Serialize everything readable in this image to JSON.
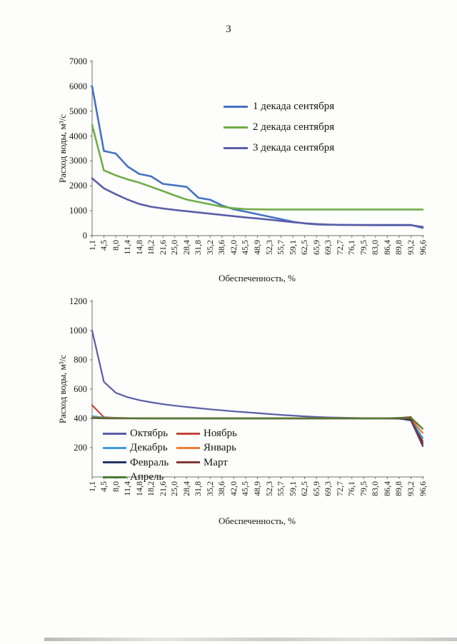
{
  "page": {
    "number": "3"
  },
  "chart_data": [
    {
      "type": "line",
      "title": "",
      "xlabel": "Обеспеченность, %",
      "ylabel": "Расход воды, м³/с",
      "ylim": [
        0,
        7000
      ],
      "y_ticks": [
        7000,
        6000,
        5000,
        4000,
        3000,
        2000,
        1000,
        0
      ],
      "grid": false,
      "legend_position": "inside-top-right",
      "categories": [
        "1,1",
        "4,5",
        "8,0",
        "11,4",
        "14,8",
        "18,2",
        "21,6",
        "25,0",
        "28,4",
        "31,8",
        "35,2",
        "38,6",
        "42,0",
        "45,5",
        "48,9",
        "52,3",
        "55,7",
        "59,1",
        "62,5",
        "65,9",
        "69,3",
        "72,7",
        "76,1",
        "79,5",
        "83,0",
        "86,4",
        "89,8",
        "93,2",
        "96,6"
      ],
      "series": [
        {
          "name": "1 декада сентября",
          "color": "#4472C4",
          "values": [
            6000,
            3400,
            3300,
            2780,
            2480,
            2380,
            2080,
            2020,
            1960,
            1520,
            1440,
            1210,
            1060,
            960,
            860,
            760,
            660,
            560,
            490,
            450,
            435,
            430,
            430,
            430,
            430,
            430,
            430,
            430,
            310
          ]
        },
        {
          "name": "2 декада сентября",
          "color": "#70AD47",
          "values": [
            4450,
            2620,
            2420,
            2260,
            2130,
            1960,
            1790,
            1610,
            1450,
            1350,
            1260,
            1160,
            1100,
            1065,
            1055,
            1050,
            1050,
            1050,
            1050,
            1050,
            1050,
            1050,
            1050,
            1050,
            1050,
            1050,
            1050,
            1050,
            1050
          ]
        },
        {
          "name": "3 декада сентября",
          "color": "#5B5EA6",
          "values": [
            2300,
            1900,
            1660,
            1450,
            1270,
            1160,
            1090,
            1030,
            980,
            930,
            880,
            830,
            780,
            730,
            690,
            640,
            590,
            540,
            495,
            465,
            445,
            432,
            425,
            422,
            420,
            420,
            420,
            420,
            350
          ]
        }
      ]
    },
    {
      "type": "line",
      "title": "",
      "xlabel": "Обеспеченность, %",
      "ylabel": "Расход воды, м³/с",
      "ylim": [
        0,
        1200
      ],
      "y_ticks": [
        1200,
        1000,
        800,
        600,
        400,
        200
      ],
      "grid": false,
      "legend_position": "inside-bottom-left",
      "categories": [
        "1,1",
        "4,5",
        "8,0",
        "11,4",
        "14,8",
        "18,2",
        "21,6",
        "25,0",
        "28,4",
        "31,8",
        "35,2",
        "38,6",
        "42,0",
        "45,5",
        "48,9",
        "52,3",
        "55,7",
        "59,1",
        "62,5",
        "65,9",
        "69,3",
        "72,7",
        "76,1",
        "79,5",
        "83,0",
        "86,4",
        "89,8",
        "93,2",
        "96,6"
      ],
      "series": [
        {
          "name": "Октябрь",
          "color": "#5B5EA6",
          "values": [
            1000,
            650,
            575,
            545,
            525,
            510,
            497,
            487,
            478,
            470,
            462,
            455,
            448,
            442,
            436,
            430,
            424,
            419,
            414,
            410,
            407,
            405,
            403,
            402,
            401,
            400,
            400,
            385,
            210
          ]
        },
        {
          "name": "Ноябрь",
          "color": "#C4443C",
          "values": [
            490,
            408,
            404,
            402,
            401,
            401,
            400,
            400,
            400,
            400,
            400,
            400,
            400,
            400,
            400,
            400,
            400,
            400,
            400,
            400,
            400,
            400,
            400,
            400,
            400,
            401,
            403,
            410,
            245
          ]
        },
        {
          "name": "Декабрь",
          "color": "#3E9BDB",
          "values": [
            415,
            406,
            403,
            402,
            402,
            401,
            401,
            401,
            401,
            401,
            401,
            401,
            401,
            401,
            401,
            401,
            401,
            401,
            401,
            401,
            401,
            401,
            401,
            401,
            400,
            399,
            402,
            395,
            265
          ]
        },
        {
          "name": "Январь",
          "color": "#ED7D31",
          "values": [
            408,
            404,
            403,
            402,
            402,
            402,
            402,
            402,
            402,
            402,
            402,
            402,
            402,
            402,
            402,
            402,
            402,
            402,
            402,
            402,
            402,
            402,
            402,
            402,
            402,
            402,
            400,
            400,
            300
          ]
        },
        {
          "name": "Февраль",
          "color": "#1F3864",
          "values": [
            404,
            402,
            401,
            401,
            400,
            400,
            400,
            400,
            400,
            400,
            400,
            400,
            400,
            400,
            400,
            400,
            400,
            400,
            400,
            400,
            400,
            400,
            400,
            400,
            400,
            400,
            398,
            390,
            230
          ]
        },
        {
          "name": "Март",
          "color": "#7E3935",
          "values": [
            402,
            400,
            399,
            399,
            399,
            399,
            399,
            399,
            399,
            399,
            399,
            399,
            399,
            399,
            399,
            399,
            399,
            399,
            399,
            399,
            399,
            399,
            399,
            399,
            399,
            399,
            399,
            398,
            215
          ]
        },
        {
          "name": "Апрель",
          "color": "#4E7B32",
          "values": [
            405,
            403,
            402,
            401,
            400,
            400,
            400,
            400,
            400,
            400,
            400,
            400,
            400,
            400,
            400,
            400,
            400,
            400,
            400,
            400,
            400,
            400,
            400,
            400,
            400,
            401,
            404,
            405,
            330
          ]
        }
      ]
    }
  ]
}
